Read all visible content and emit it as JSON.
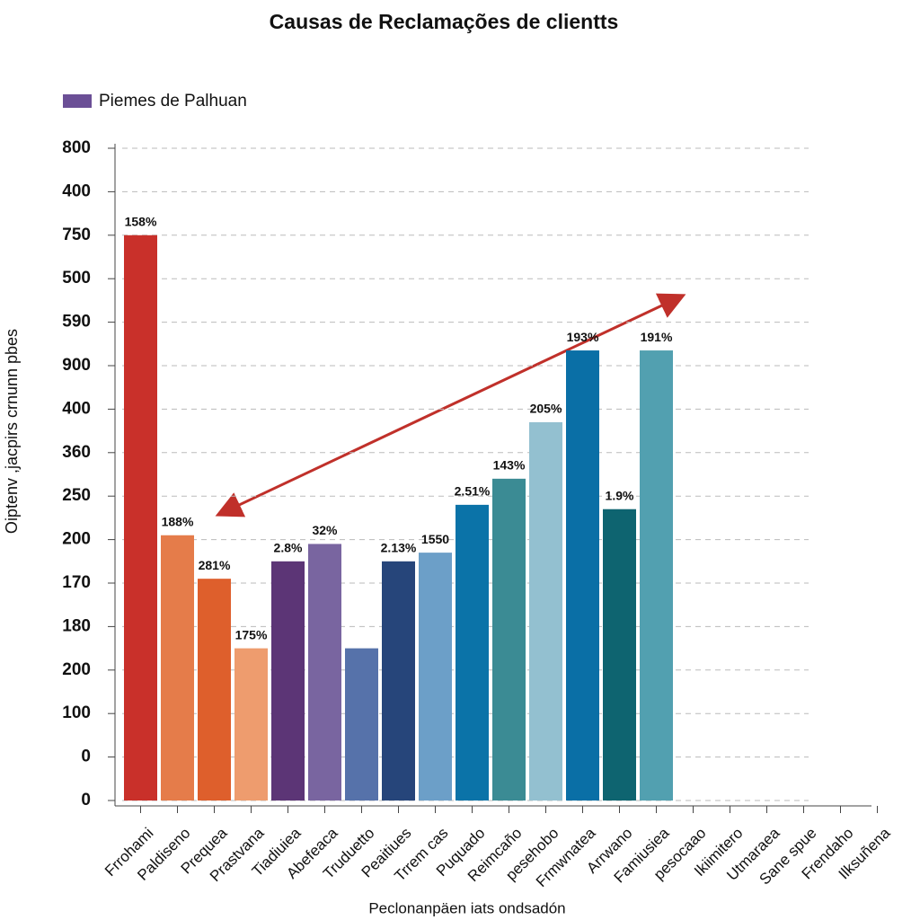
{
  "chart_data": {
    "type": "bar",
    "title": "Causas de Reclamações de clientts",
    "legend": "Piemes de Palhuan",
    "legend_color": "#6b4f96",
    "ylabel": "Oiptenv ,jacpirs crnunn pbes",
    "xlabel": "Peclonanpäen iats ondsadón",
    "categories": [
      "Frrohami",
      "Paldiseno",
      "Prequea",
      "Prastvana",
      "Tiadiuiea",
      "Abefeaca",
      "Truduetto",
      "Peaitiues",
      "Trrem cas",
      "Puquado",
      "Reimcaño",
      "pesehobo",
      "Frmwnatea",
      "Arrwano",
      "Famiusiea",
      "pesocaao",
      "Ikiimitero",
      "Utmaraea",
      "Sane spue",
      "Frendaho",
      "Ilksuñena"
    ],
    "values": [
      13.0,
      6.1,
      5.1,
      3.5,
      5.5,
      5.9,
      3.5,
      5.5,
      5.7,
      6.8,
      7.4,
      8.7,
      10.35,
      6.7,
      10.35,
      null,
      null,
      null,
      null,
      null,
      null
    ],
    "colors": [
      "#c9302a",
      "#e57c4a",
      "#de5f2c",
      "#ee9c6e",
      "#5c3576",
      "#7965a0",
      "#5672aa",
      "#26457a",
      "#6c9fc8",
      "#0b73a8",
      "#3b8b94",
      "#93c0d0",
      "#0a6fa6",
      "#0e6470",
      "#52a0b0",
      null,
      null,
      null,
      null,
      null,
      null
    ],
    "annotations": [
      "158%",
      "188%",
      "281%",
      "175%",
      "2.8%",
      "32%",
      null,
      "2.13%",
      "1550",
      "2.51%",
      "143%",
      "205%",
      "193%",
      "1.9%",
      "191%",
      null,
      null,
      null,
      null,
      null,
      null
    ],
    "ylim": [
      0,
      15
    ],
    "yticks": [
      {
        "value": 15,
        "label": "800"
      },
      {
        "value": 14,
        "label": "400"
      },
      {
        "value": 13,
        "label": "750"
      },
      {
        "value": 12,
        "label": "500"
      },
      {
        "value": 11,
        "label": "590"
      },
      {
        "value": 10,
        "label": "900"
      },
      {
        "value": 9,
        "label": "400"
      },
      {
        "value": 8,
        "label": "360"
      },
      {
        "value": 7,
        "label": "250"
      },
      {
        "value": 6,
        "label": "200"
      },
      {
        "value": 5,
        "label": "170"
      },
      {
        "value": 4,
        "label": "180"
      },
      {
        "value": 3,
        "label": "200"
      },
      {
        "value": 2,
        "label": "100"
      },
      {
        "value": 1,
        "label": "0"
      },
      {
        "value": 0,
        "label": "0"
      }
    ],
    "grid": true
  }
}
